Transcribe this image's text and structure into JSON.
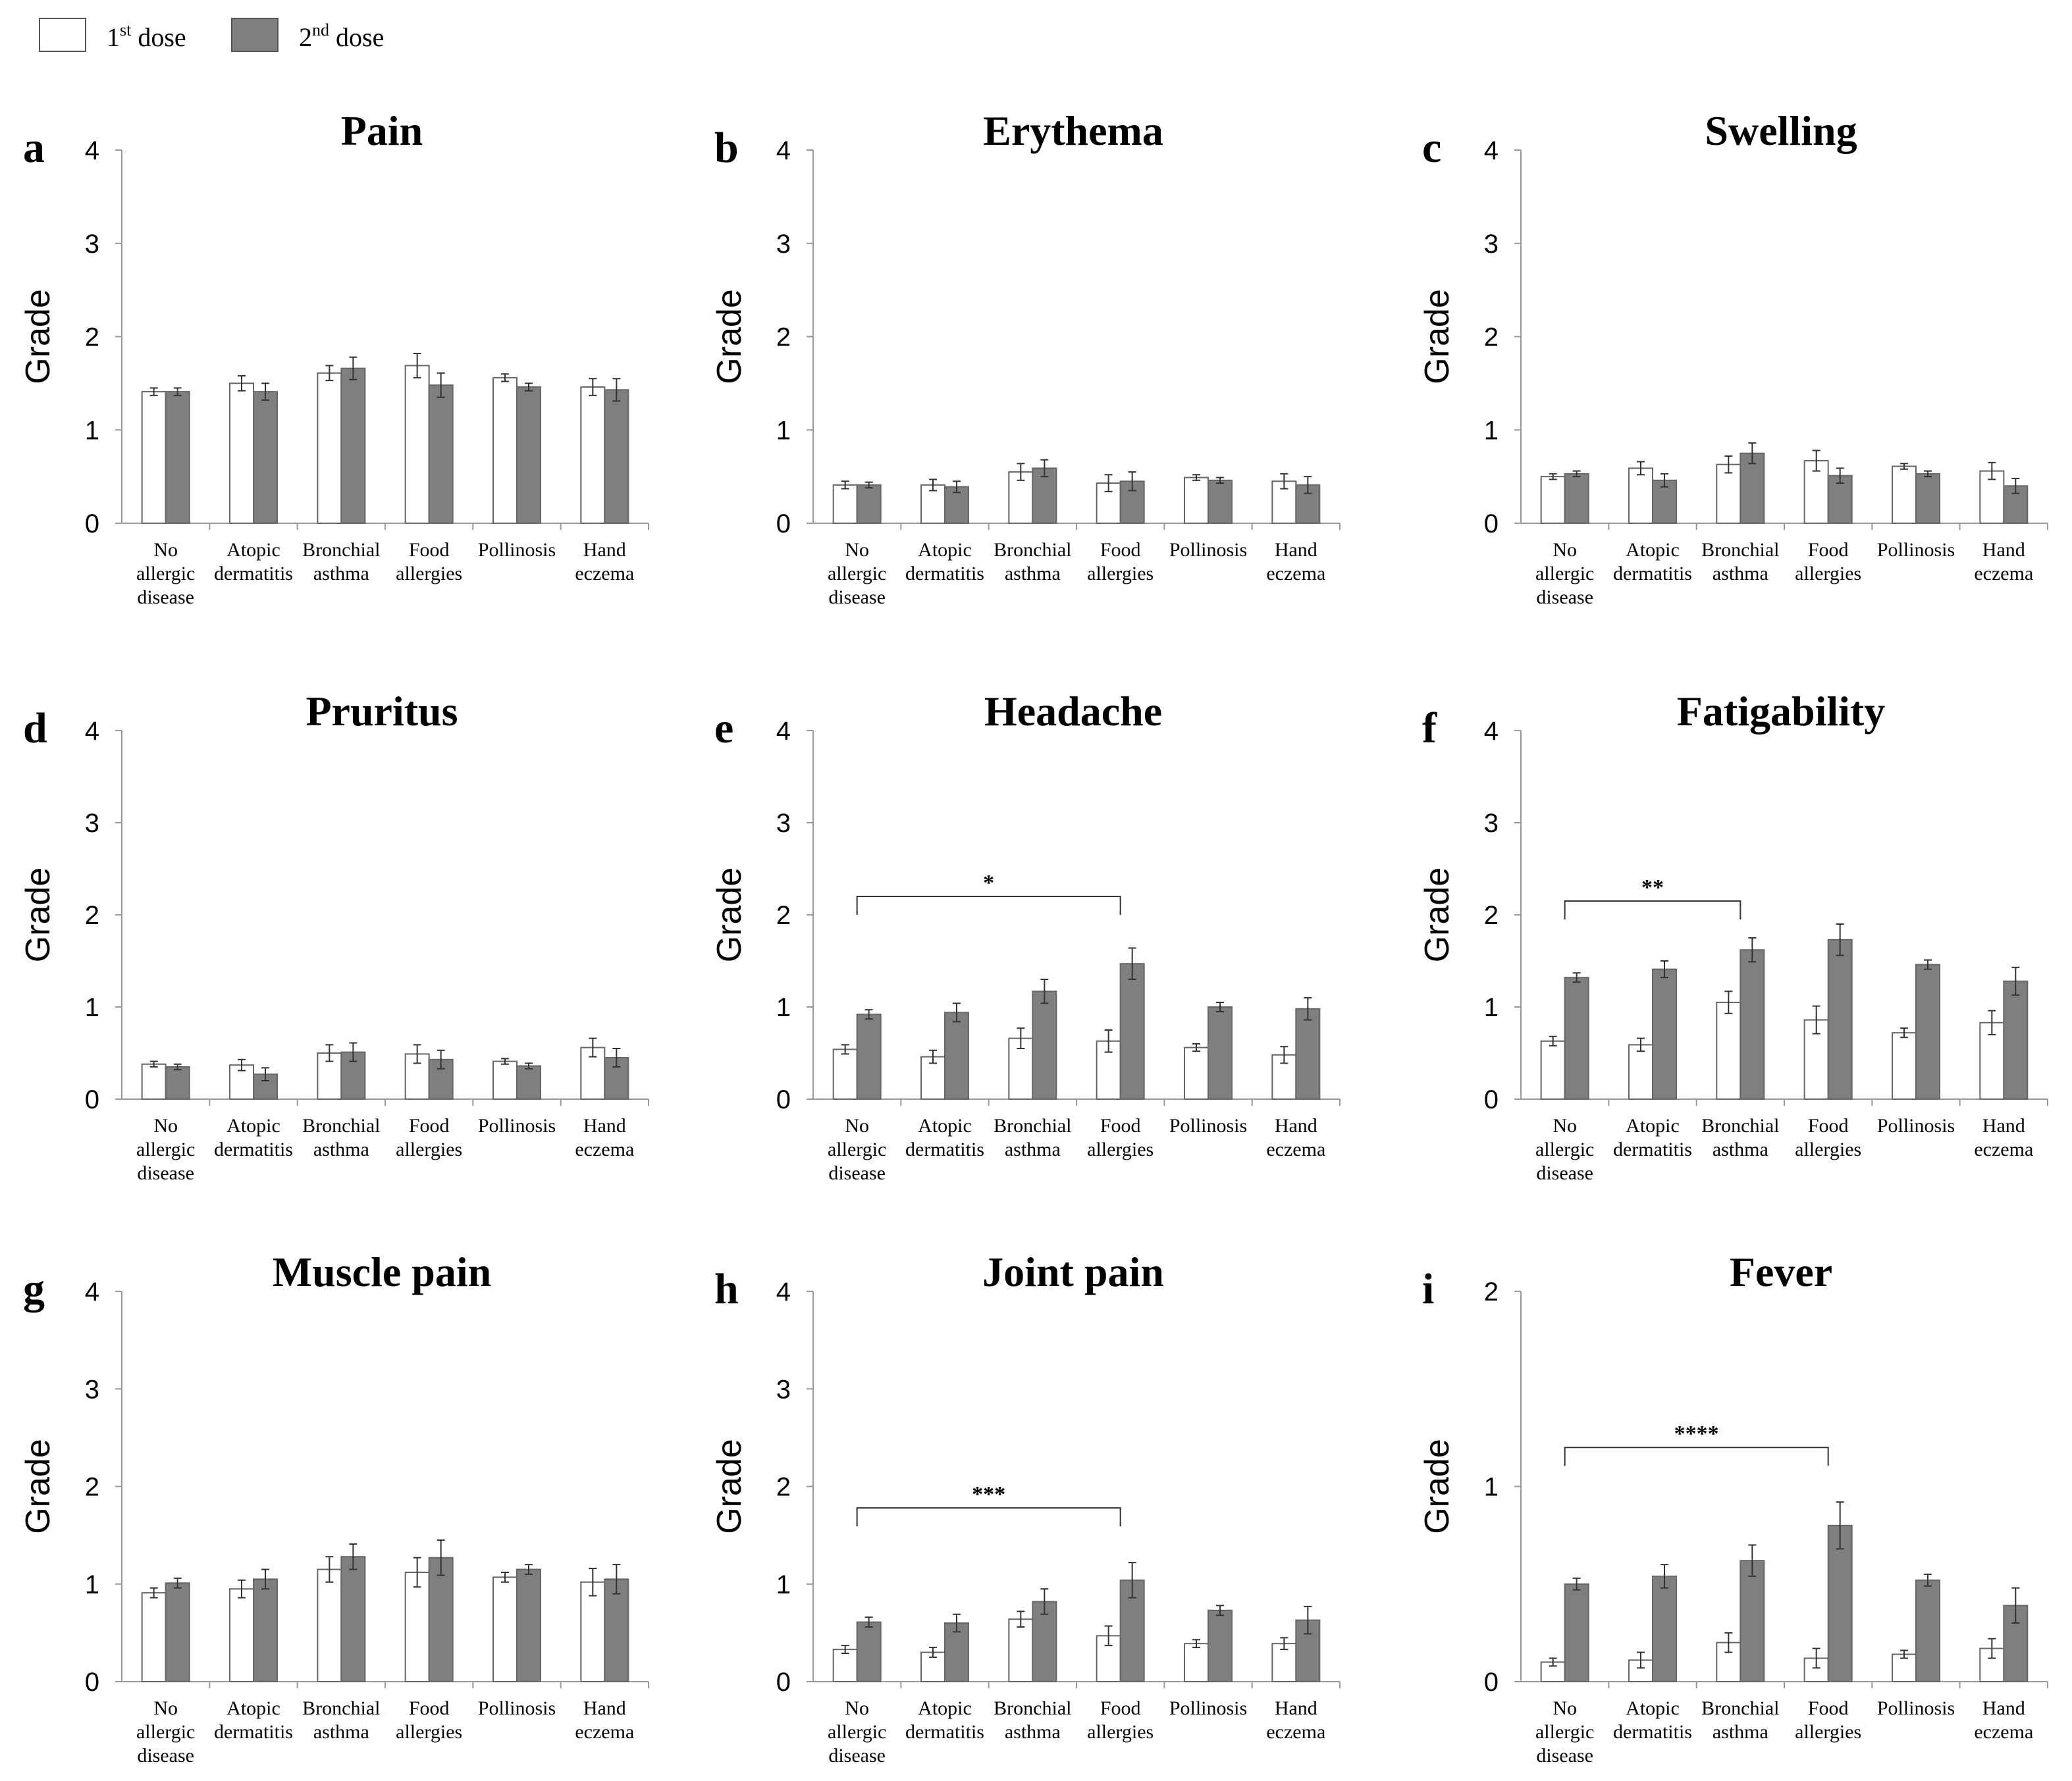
{
  "legend": {
    "first": {
      "num": "1",
      "sup": "st",
      "word": " dose"
    },
    "second": {
      "num": "2",
      "sup": "nd",
      "word": " dose"
    },
    "first_color": "#ffffff",
    "second_color": "#7f7f7f"
  },
  "colors": {
    "first": "#ffffff",
    "second": "#7f7f7f",
    "axis": "#999999",
    "stroke": "#666666"
  },
  "chart_data": [
    {
      "letter": "a",
      "type": "bar",
      "title": "Pain",
      "ylabel": "Grade",
      "ylim": [
        0,
        4
      ],
      "yticks": [
        "0",
        "1",
        "2",
        "3",
        "4"
      ],
      "categories": [
        [
          "No",
          "allergic",
          "disease"
        ],
        [
          "Atopic",
          "dermatitis"
        ],
        [
          "Bronchial",
          "asthma"
        ],
        [
          "Food",
          "allergies"
        ],
        [
          "Pollinosis"
        ],
        [
          "Hand",
          "eczema"
        ]
      ],
      "series": [
        {
          "name": "1st dose",
          "values": [
            1.41,
            1.5,
            1.61,
            1.69,
            1.56,
            1.46
          ],
          "errors": [
            0.04,
            0.08,
            0.08,
            0.13,
            0.04,
            0.09
          ]
        },
        {
          "name": "2nd dose",
          "values": [
            1.41,
            1.41,
            1.66,
            1.48,
            1.46,
            1.43
          ],
          "errors": [
            0.04,
            0.09,
            0.12,
            0.13,
            0.04,
            0.12
          ]
        }
      ]
    },
    {
      "letter": "b",
      "type": "bar",
      "title": "Erythema",
      "ylabel": "Grade",
      "ylim": [
        0,
        4
      ],
      "yticks": [
        "0",
        "1",
        "2",
        "3",
        "4"
      ],
      "categories": [
        [
          "No",
          "allergic",
          "disease"
        ],
        [
          "Atopic",
          "dermatitis"
        ],
        [
          "Bronchial",
          "asthma"
        ],
        [
          "Food",
          "allergies"
        ],
        [
          "Pollinosis"
        ],
        [
          "Hand",
          "eczema"
        ]
      ],
      "series": [
        {
          "name": "1st dose",
          "values": [
            0.41,
            0.41,
            0.55,
            0.43,
            0.49,
            0.45
          ],
          "errors": [
            0.04,
            0.06,
            0.09,
            0.09,
            0.03,
            0.08
          ]
        },
        {
          "name": "2nd dose",
          "values": [
            0.41,
            0.39,
            0.59,
            0.45,
            0.46,
            0.41
          ],
          "errors": [
            0.03,
            0.06,
            0.09,
            0.1,
            0.03,
            0.09
          ]
        }
      ]
    },
    {
      "letter": "c",
      "type": "bar",
      "title": "Swelling",
      "ylabel": "Grade",
      "ylim": [
        0,
        4
      ],
      "yticks": [
        "0",
        "1",
        "2",
        "3",
        "4"
      ],
      "categories": [
        [
          "No",
          "allergic",
          "disease"
        ],
        [
          "Atopic",
          "dermatitis"
        ],
        [
          "Bronchial",
          "asthma"
        ],
        [
          "Food",
          "allergies"
        ],
        [
          "Pollinosis"
        ],
        [
          "Hand",
          "eczema"
        ]
      ],
      "series": [
        {
          "name": "1st dose",
          "values": [
            0.5,
            0.59,
            0.63,
            0.67,
            0.61,
            0.56
          ],
          "errors": [
            0.03,
            0.07,
            0.09,
            0.11,
            0.03,
            0.09
          ]
        },
        {
          "name": "2nd dose",
          "values": [
            0.53,
            0.46,
            0.75,
            0.51,
            0.53,
            0.4
          ],
          "errors": [
            0.03,
            0.07,
            0.11,
            0.08,
            0.03,
            0.08
          ]
        }
      ]
    },
    {
      "letter": "d",
      "type": "bar",
      "title": "Pruritus",
      "ylabel": "Grade",
      "ylim": [
        0,
        4
      ],
      "yticks": [
        "0",
        "1",
        "2",
        "3",
        "4"
      ],
      "categories": [
        [
          "No",
          "allergic",
          "disease"
        ],
        [
          "Atopic",
          "dermatitis"
        ],
        [
          "Bronchial",
          "asthma"
        ],
        [
          "Food",
          "allergies"
        ],
        [
          "Pollinosis"
        ],
        [
          "Hand",
          "eczema"
        ]
      ],
      "series": [
        {
          "name": "1st dose",
          "values": [
            0.38,
            0.37,
            0.5,
            0.49,
            0.41,
            0.56
          ],
          "errors": [
            0.03,
            0.06,
            0.09,
            0.1,
            0.03,
            0.1
          ]
        },
        {
          "name": "2nd dose",
          "values": [
            0.35,
            0.27,
            0.51,
            0.43,
            0.36,
            0.45
          ],
          "errors": [
            0.03,
            0.07,
            0.1,
            0.1,
            0.03,
            0.1
          ]
        }
      ]
    },
    {
      "letter": "e",
      "type": "bar",
      "title": "Headache",
      "ylabel": "Grade",
      "ylim": [
        0,
        4
      ],
      "yticks": [
        "0",
        "1",
        "2",
        "3",
        "4"
      ],
      "categories": [
        [
          "No",
          "allergic",
          "disease"
        ],
        [
          "Atopic",
          "dermatitis"
        ],
        [
          "Bronchial",
          "asthma"
        ],
        [
          "Food",
          "allergies"
        ],
        [
          "Pollinosis"
        ],
        [
          "Hand",
          "eczema"
        ]
      ],
      "series": [
        {
          "name": "1st dose",
          "values": [
            0.54,
            0.46,
            0.66,
            0.63,
            0.56,
            0.48
          ],
          "errors": [
            0.05,
            0.07,
            0.11,
            0.12,
            0.04,
            0.09
          ]
        },
        {
          "name": "2nd dose",
          "values": [
            0.92,
            0.94,
            1.17,
            1.47,
            1.0,
            0.98
          ],
          "errors": [
            0.05,
            0.1,
            0.13,
            0.17,
            0.05,
            0.12
          ]
        }
      ],
      "significance": {
        "label": "*",
        "from": 0,
        "to": 3,
        "y": 2.2
      }
    },
    {
      "letter": "f",
      "type": "bar",
      "title": "Fatigability",
      "ylabel": "Grade",
      "ylim": [
        0,
        4
      ],
      "yticks": [
        "0",
        "1",
        "2",
        "3",
        "4"
      ],
      "categories": [
        [
          "No",
          "allergic",
          "disease"
        ],
        [
          "Atopic",
          "dermatitis"
        ],
        [
          "Bronchial",
          "asthma"
        ],
        [
          "Food",
          "allergies"
        ],
        [
          "Pollinosis"
        ],
        [
          "Hand",
          "eczema"
        ]
      ],
      "series": [
        {
          "name": "1st dose",
          "values": [
            0.63,
            0.59,
            1.05,
            0.86,
            0.72,
            0.83
          ],
          "errors": [
            0.05,
            0.07,
            0.12,
            0.15,
            0.05,
            0.13
          ]
        },
        {
          "name": "2nd dose",
          "values": [
            1.32,
            1.41,
            1.62,
            1.73,
            1.46,
            1.28
          ],
          "errors": [
            0.05,
            0.09,
            0.13,
            0.17,
            0.05,
            0.15
          ]
        }
      ],
      "significance": {
        "label": "**",
        "from": 0,
        "to": 2,
        "y": 2.15
      }
    },
    {
      "letter": "g",
      "type": "bar",
      "title": "Muscle pain",
      "ylabel": "Grade",
      "ylim": [
        0,
        4
      ],
      "yticks": [
        "0",
        "1",
        "2",
        "3",
        "4"
      ],
      "categories": [
        [
          "No",
          "allergic",
          "disease"
        ],
        [
          "Atopic",
          "dermatitis"
        ],
        [
          "Bronchial",
          "asthma"
        ],
        [
          "Food",
          "allergies"
        ],
        [
          "Pollinosis"
        ],
        [
          "Hand",
          "eczema"
        ]
      ],
      "series": [
        {
          "name": "1st dose",
          "values": [
            0.91,
            0.95,
            1.15,
            1.12,
            1.07,
            1.02
          ],
          "errors": [
            0.05,
            0.09,
            0.13,
            0.15,
            0.05,
            0.14
          ]
        },
        {
          "name": "2nd dose",
          "values": [
            1.01,
            1.05,
            1.28,
            1.27,
            1.15,
            1.05
          ],
          "errors": [
            0.05,
            0.1,
            0.13,
            0.18,
            0.05,
            0.15
          ]
        }
      ]
    },
    {
      "letter": "h",
      "type": "bar",
      "title": "Joint pain",
      "ylabel": "Grade",
      "ylim": [
        0,
        4
      ],
      "yticks": [
        "0",
        "1",
        "2",
        "3",
        "4"
      ],
      "categories": [
        [
          "No",
          "allergic",
          "disease"
        ],
        [
          "Atopic",
          "dermatitis"
        ],
        [
          "Bronchial",
          "asthma"
        ],
        [
          "Food",
          "allergies"
        ],
        [
          "Pollinosis"
        ],
        [
          "Hand",
          "eczema"
        ]
      ],
      "series": [
        {
          "name": "1st dose",
          "values": [
            0.33,
            0.3,
            0.64,
            0.47,
            0.39,
            0.39
          ],
          "errors": [
            0.04,
            0.05,
            0.08,
            0.1,
            0.04,
            0.06
          ]
        },
        {
          "name": "2nd dose",
          "values": [
            0.61,
            0.6,
            0.82,
            1.04,
            0.73,
            0.63
          ],
          "errors": [
            0.05,
            0.09,
            0.13,
            0.18,
            0.05,
            0.14
          ]
        }
      ],
      "significance": {
        "label": "***",
        "from": 0,
        "to": 3,
        "y": 1.78
      }
    },
    {
      "letter": "i",
      "type": "bar",
      "title": "Fever",
      "ylabel": "Grade",
      "ylim": [
        0,
        2
      ],
      "yticks": [
        "0",
        "1",
        "2"
      ],
      "categories": [
        [
          "No",
          "allergic",
          "disease"
        ],
        [
          "Atopic",
          "dermatitis"
        ],
        [
          "Bronchial",
          "asthma"
        ],
        [
          "Food",
          "allergies"
        ],
        [
          "Pollinosis"
        ],
        [
          "Hand",
          "eczema"
        ]
      ],
      "series": [
        {
          "name": "1st dose",
          "values": [
            0.1,
            0.11,
            0.2,
            0.12,
            0.14,
            0.17
          ],
          "errors": [
            0.02,
            0.04,
            0.05,
            0.05,
            0.02,
            0.05
          ]
        },
        {
          "name": "2nd dose",
          "values": [
            0.5,
            0.54,
            0.62,
            0.8,
            0.52,
            0.39
          ],
          "errors": [
            0.03,
            0.06,
            0.08,
            0.12,
            0.03,
            0.09
          ]
        }
      ],
      "significance": {
        "label": "****",
        "from": 0,
        "to": 3,
        "y": 1.2
      }
    }
  ]
}
